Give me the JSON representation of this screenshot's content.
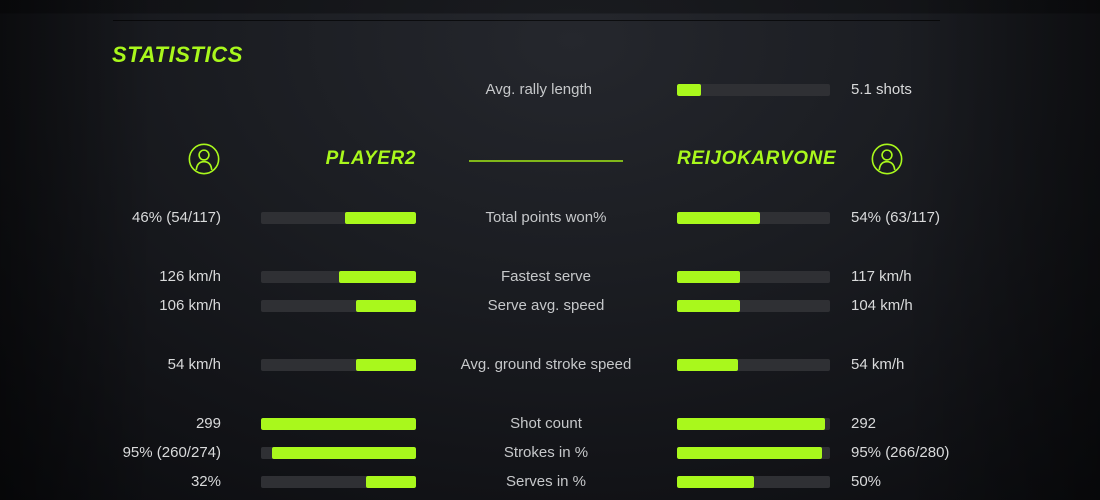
{
  "page": {
    "title": "STATISTICS"
  },
  "colors": {
    "accent_green": "#a9f81c",
    "bar_track": "#2f3034",
    "value_text": "#d9dadb",
    "label_text": "#c6c8ca"
  },
  "rally": {
    "label": "Avg. rally length",
    "value": "5.1 shots",
    "fill_pct": 16
  },
  "players": {
    "left": {
      "name": "PLAYER2"
    },
    "right": {
      "name": "REIJOKARVONE"
    }
  },
  "rows": [
    {
      "label": "Total points won%",
      "left": {
        "value": "46% (54/117)",
        "fill_pct": 46
      },
      "right": {
        "value": "54% (63/117)",
        "fill_pct": 54
      }
    },
    {
      "label": "Fastest serve",
      "left": {
        "value": "126 km/h",
        "fill_pct": 50
      },
      "right": {
        "value": "117 km/h",
        "fill_pct": 41
      }
    },
    {
      "label": "Serve avg. speed",
      "left": {
        "value": "106 km/h",
        "fill_pct": 39
      },
      "right": {
        "value": "104 km/h",
        "fill_pct": 41
      }
    },
    {
      "label": "Avg. ground stroke speed",
      "left": {
        "value": "54 km/h",
        "fill_pct": 39
      },
      "right": {
        "value": "54 km/h",
        "fill_pct": 40
      }
    },
    {
      "label": "Shot count",
      "left": {
        "value": "299",
        "fill_pct": 100
      },
      "right": {
        "value": "292",
        "fill_pct": 97
      }
    },
    {
      "label": "Strokes in %",
      "left": {
        "value": "95% (260/274)",
        "fill_pct": 93
      },
      "right": {
        "value": "95% (266/280)",
        "fill_pct": 95
      }
    },
    {
      "label": "Serves in %",
      "left": {
        "value": "32%",
        "fill_pct": 32
      },
      "right": {
        "value": "50%",
        "fill_pct": 50
      }
    }
  ]
}
